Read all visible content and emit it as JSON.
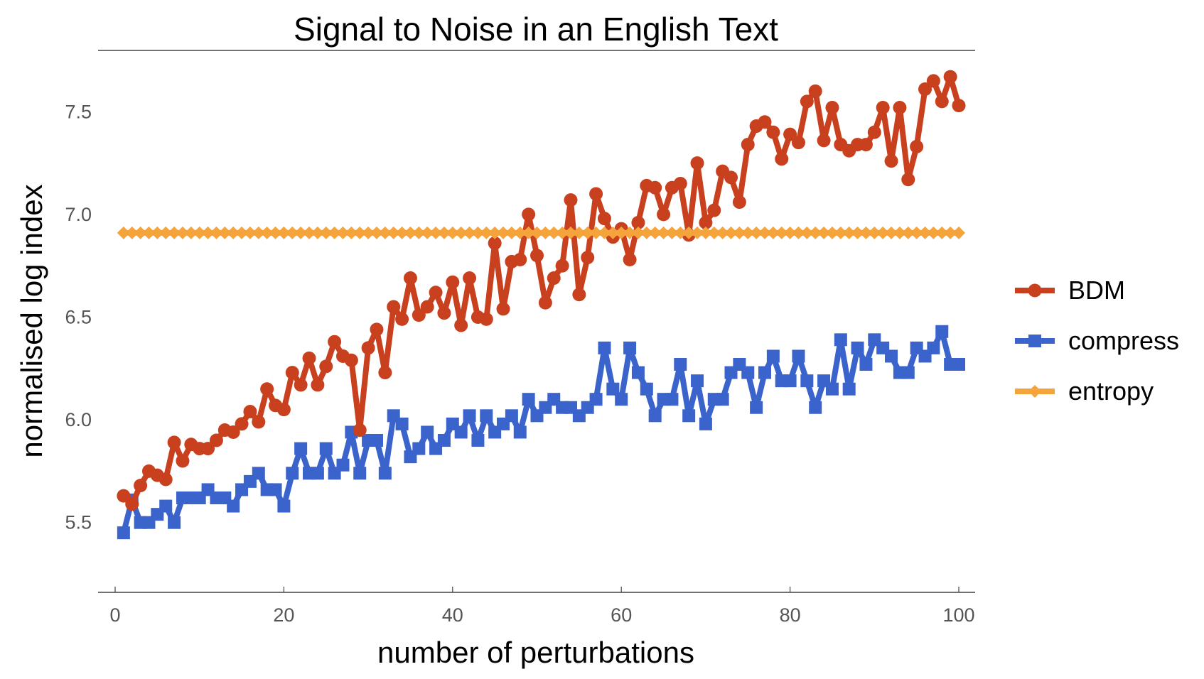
{
  "chart_data": {
    "type": "line",
    "title": "Signal to Noise in an English Text",
    "xlabel": "number of perturbations",
    "ylabel": "normalised log index",
    "xlim": [
      0,
      100
    ],
    "ylim": [
      5.25,
      7.75
    ],
    "xticks": [
      0,
      20,
      40,
      60,
      80,
      100
    ],
    "yticks": [
      5.5,
      6.0,
      6.5,
      7.0,
      7.5
    ],
    "ytick_labels": [
      "5.5",
      "6.0",
      "6.5",
      "7.0",
      "7.5"
    ],
    "grid": false,
    "legend_position": "right",
    "x": [
      1,
      2,
      3,
      4,
      5,
      6,
      7,
      8,
      9,
      10,
      11,
      12,
      13,
      14,
      15,
      16,
      17,
      18,
      19,
      20,
      21,
      22,
      23,
      24,
      25,
      26,
      27,
      28,
      29,
      30,
      31,
      32,
      33,
      34,
      35,
      36,
      37,
      38,
      39,
      40,
      41,
      42,
      43,
      44,
      45,
      46,
      47,
      48,
      49,
      50,
      51,
      52,
      53,
      54,
      55,
      56,
      57,
      58,
      59,
      60,
      61,
      62,
      63,
      64,
      65,
      66,
      67,
      68,
      69,
      70,
      71,
      72,
      73,
      74,
      75,
      76,
      77,
      78,
      79,
      80,
      81,
      82,
      83,
      84,
      85,
      86,
      87,
      88,
      89,
      90,
      91,
      92,
      93,
      94,
      95,
      96,
      97,
      98,
      99,
      100
    ],
    "series": [
      {
        "name": "BDM",
        "color": "#c8401e",
        "marker": "circle",
        "values": [
          5.63,
          5.59,
          5.68,
          5.75,
          5.73,
          5.71,
          5.89,
          5.8,
          5.88,
          5.86,
          5.86,
          5.9,
          5.95,
          5.94,
          5.98,
          6.04,
          5.99,
          6.15,
          6.07,
          6.05,
          6.23,
          6.17,
          6.3,
          6.17,
          6.26,
          6.38,
          6.31,
          6.29,
          5.95,
          6.35,
          6.44,
          6.23,
          6.55,
          6.49,
          6.69,
          6.51,
          6.55,
          6.62,
          6.52,
          6.67,
          6.46,
          6.69,
          6.5,
          6.49,
          6.86,
          6.54,
          6.77,
          6.78,
          7.0,
          6.8,
          6.57,
          6.69,
          6.75,
          7.07,
          6.61,
          6.79,
          7.1,
          6.98,
          6.89,
          6.93,
          6.78,
          6.96,
          7.14,
          7.13,
          7.0,
          7.13,
          7.15,
          6.9,
          7.25,
          6.96,
          7.02,
          7.21,
          7.18,
          7.06,
          7.34,
          7.43,
          7.45,
          7.4,
          7.27,
          7.39,
          7.35,
          7.55,
          7.6,
          7.36,
          7.52,
          7.34,
          7.31,
          7.34,
          7.34,
          7.4,
          7.52,
          7.26,
          7.52,
          7.17,
          7.33,
          7.61,
          7.65,
          7.55,
          7.67,
          7.53
        ]
      },
      {
        "name": "compress",
        "color": "#3a63cc",
        "marker": "square",
        "values": [
          5.45,
          5.61,
          5.5,
          5.5,
          5.54,
          5.58,
          5.5,
          5.62,
          5.62,
          5.62,
          5.66,
          5.62,
          5.62,
          5.58,
          5.66,
          5.7,
          5.74,
          5.66,
          5.66,
          5.58,
          5.74,
          5.86,
          5.74,
          5.74,
          5.86,
          5.74,
          5.78,
          5.94,
          5.74,
          5.9,
          5.9,
          5.74,
          6.02,
          5.98,
          5.82,
          5.86,
          5.94,
          5.86,
          5.9,
          5.98,
          5.94,
          6.02,
          5.9,
          6.02,
          5.94,
          5.98,
          6.02,
          5.94,
          6.1,
          6.02,
          6.06,
          6.1,
          6.06,
          6.06,
          6.02,
          6.06,
          6.1,
          6.35,
          6.15,
          6.1,
          6.35,
          6.23,
          6.15,
          6.02,
          6.1,
          6.1,
          6.27,
          6.02,
          6.19,
          5.98,
          6.1,
          6.1,
          6.23,
          6.27,
          6.23,
          6.06,
          6.23,
          6.31,
          6.19,
          6.19,
          6.31,
          6.19,
          6.06,
          6.19,
          6.15,
          6.39,
          6.15,
          6.35,
          6.27,
          6.39,
          6.35,
          6.31,
          6.23,
          6.23,
          6.35,
          6.31,
          6.35,
          6.43,
          6.27,
          6.27
        ]
      },
      {
        "name": "entropy",
        "color": "#f5a33b",
        "marker": "diamond",
        "values": [
          6.91,
          6.91,
          6.91,
          6.91,
          6.91,
          6.91,
          6.91,
          6.91,
          6.91,
          6.91,
          6.91,
          6.91,
          6.91,
          6.91,
          6.91,
          6.91,
          6.91,
          6.91,
          6.91,
          6.91,
          6.91,
          6.91,
          6.91,
          6.91,
          6.91,
          6.91,
          6.91,
          6.91,
          6.91,
          6.91,
          6.91,
          6.91,
          6.91,
          6.91,
          6.91,
          6.91,
          6.91,
          6.91,
          6.91,
          6.91,
          6.91,
          6.91,
          6.91,
          6.91,
          6.91,
          6.91,
          6.91,
          6.91,
          6.91,
          6.91,
          6.91,
          6.91,
          6.91,
          6.91,
          6.91,
          6.91,
          6.91,
          6.91,
          6.91,
          6.91,
          6.91,
          6.91,
          6.91,
          6.91,
          6.91,
          6.91,
          6.91,
          6.91,
          6.91,
          6.91,
          6.91,
          6.91,
          6.91,
          6.91,
          6.91,
          6.91,
          6.91,
          6.91,
          6.91,
          6.91,
          6.91,
          6.91,
          6.91,
          6.91,
          6.91,
          6.91,
          6.91,
          6.91,
          6.91,
          6.91,
          6.91,
          6.91,
          6.91,
          6.91,
          6.91,
          6.91,
          6.91,
          6.91,
          6.91,
          6.91
        ]
      }
    ]
  }
}
